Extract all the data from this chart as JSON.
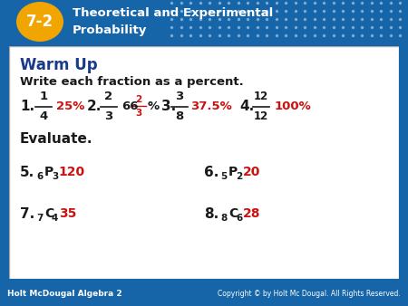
{
  "header_bg": "#1565a8",
  "header_text_line1": "Theoretical and Experimental",
  "header_text_line2": "Probability",
  "header_label": "7-2",
  "header_label_bg": "#f0a500",
  "content_bg": "#ffffff",
  "content_border": "#aaaaaa",
  "footer_bg": "#1565a8",
  "footer_left": "Holt McDougal Algebra 2",
  "footer_right": "Copyright © by Holt Mc Dougal. All Rights Reserved.",
  "warmup_title": "Warm Up",
  "warmup_title_color": "#1a3a8a",
  "subtitle": "Write each fraction as a percent.",
  "evaluate": "Evaluate.",
  "black": "#1a1a1a",
  "red": "#cc1111",
  "dot_color": "#a8c8e8"
}
